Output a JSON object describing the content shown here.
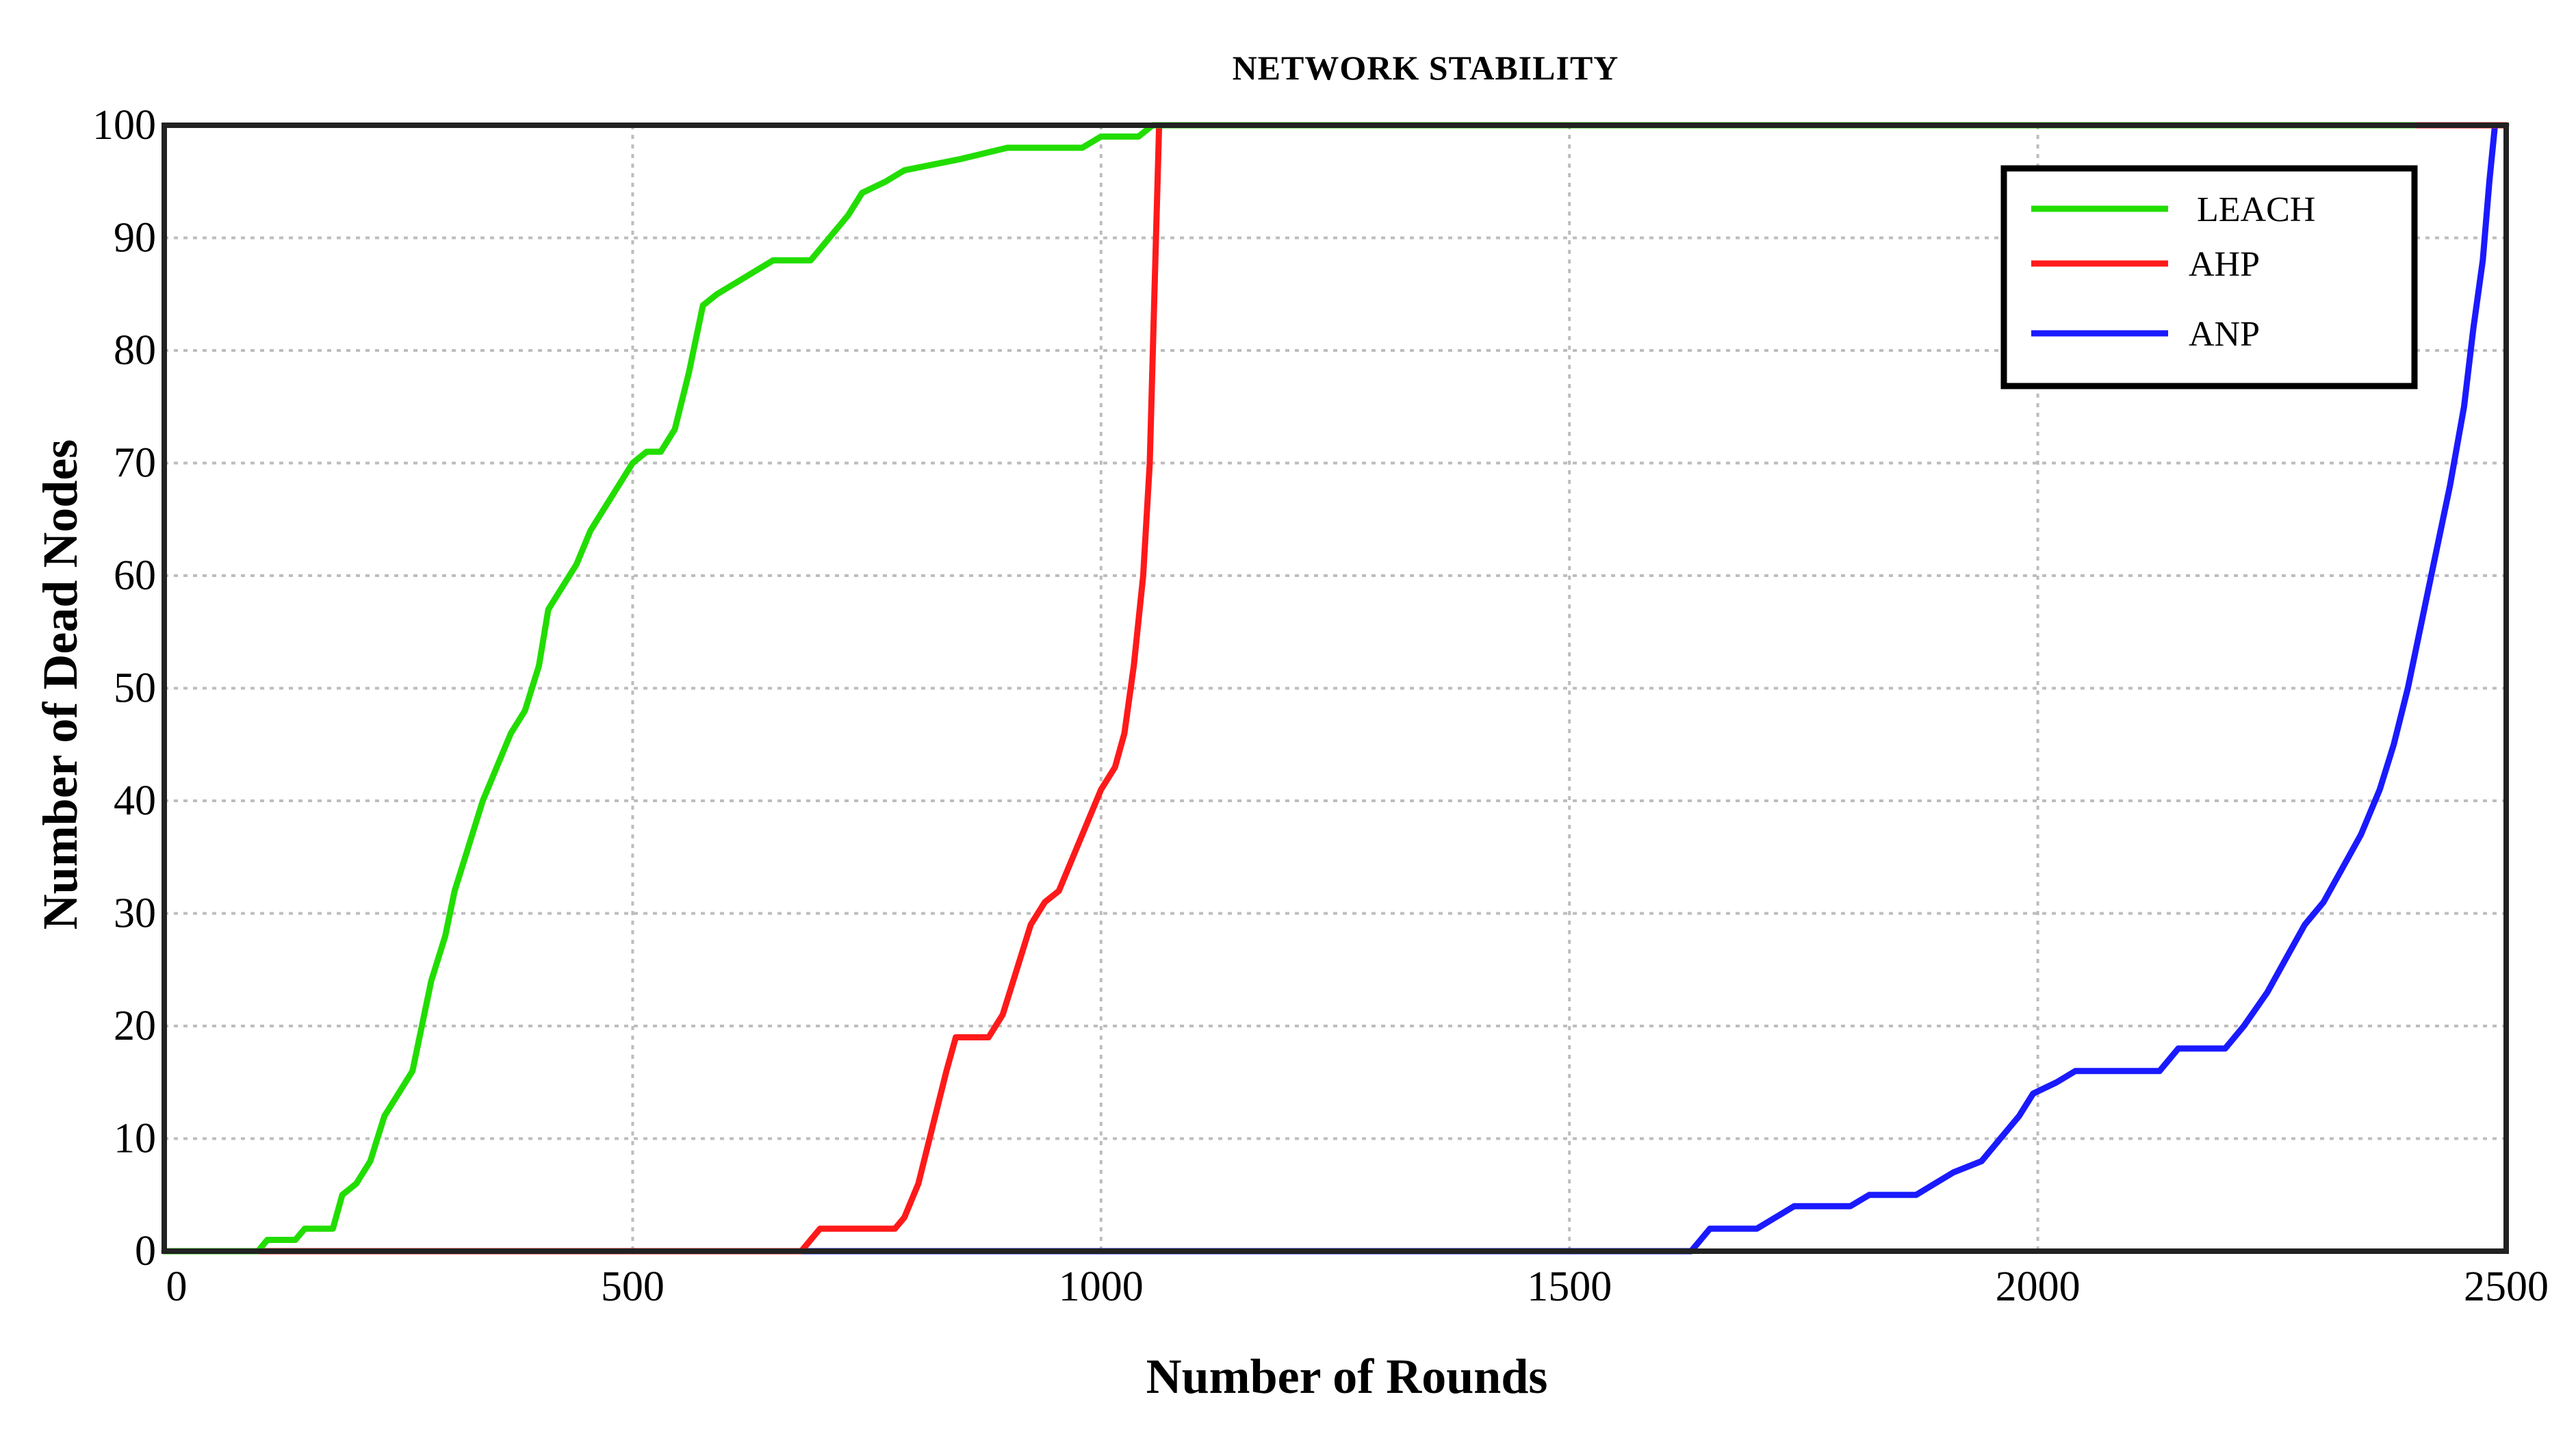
{
  "chart_data": {
    "type": "line",
    "title": "NETWORK STABILITY",
    "xlabel": "Number of Rounds",
    "ylabel": "Number of Dead Nodes",
    "xlim": [
      0,
      2500
    ],
    "ylim": [
      0,
      100
    ],
    "xticks": [
      0,
      500,
      1000,
      1500,
      2000,
      2500
    ],
    "yticks": [
      0,
      10,
      20,
      30,
      40,
      50,
      60,
      70,
      80,
      90,
      100
    ],
    "grid": true,
    "legend_position": "top-right",
    "series": [
      {
        "name": "LEACH",
        "color": "#22dd00",
        "points": [
          [
            0,
            0
          ],
          [
            100,
            0
          ],
          [
            110,
            1
          ],
          [
            140,
            1
          ],
          [
            150,
            2
          ],
          [
            180,
            2
          ],
          [
            190,
            5
          ],
          [
            205,
            6
          ],
          [
            220,
            8
          ],
          [
            235,
            12
          ],
          [
            250,
            14
          ],
          [
            265,
            16
          ],
          [
            275,
            20
          ],
          [
            285,
            24
          ],
          [
            300,
            28
          ],
          [
            310,
            32
          ],
          [
            325,
            36
          ],
          [
            340,
            40
          ],
          [
            355,
            43
          ],
          [
            370,
            46
          ],
          [
            385,
            48
          ],
          [
            400,
            52
          ],
          [
            410,
            57
          ],
          [
            425,
            59
          ],
          [
            440,
            61
          ],
          [
            455,
            64
          ],
          [
            470,
            66
          ],
          [
            485,
            68
          ],
          [
            500,
            70
          ],
          [
            515,
            71
          ],
          [
            530,
            71
          ],
          [
            545,
            73
          ],
          [
            560,
            78
          ],
          [
            575,
            84
          ],
          [
            590,
            85
          ],
          [
            610,
            86
          ],
          [
            630,
            87
          ],
          [
            650,
            88
          ],
          [
            690,
            88
          ],
          [
            710,
            90
          ],
          [
            730,
            92
          ],
          [
            745,
            94
          ],
          [
            770,
            95
          ],
          [
            790,
            96
          ],
          [
            850,
            97
          ],
          [
            900,
            98
          ],
          [
            980,
            98
          ],
          [
            1000,
            99
          ],
          [
            1040,
            99
          ],
          [
            1055,
            100
          ],
          [
            2500,
            100
          ]
        ]
      },
      {
        "name": "AHP",
        "color": "#ff1a1a",
        "points": [
          [
            0,
            0
          ],
          [
            680,
            0
          ],
          [
            690,
            1
          ],
          [
            700,
            2
          ],
          [
            780,
            2
          ],
          [
            790,
            3
          ],
          [
            805,
            6
          ],
          [
            820,
            11
          ],
          [
            835,
            16
          ],
          [
            845,
            19
          ],
          [
            880,
            19
          ],
          [
            895,
            21
          ],
          [
            910,
            25
          ],
          [
            925,
            29
          ],
          [
            940,
            31
          ],
          [
            955,
            32
          ],
          [
            970,
            35
          ],
          [
            985,
            38
          ],
          [
            1000,
            41
          ],
          [
            1015,
            43
          ],
          [
            1025,
            46
          ],
          [
            1035,
            52
          ],
          [
            1045,
            60
          ],
          [
            1052,
            70
          ],
          [
            1057,
            85
          ],
          [
            1062,
            100
          ],
          [
            2500,
            100
          ]
        ]
      },
      {
        "name": "ANP",
        "color": "#1a1aff",
        "points": [
          [
            0,
            0
          ],
          [
            1630,
            0
          ],
          [
            1650,
            2
          ],
          [
            1700,
            2
          ],
          [
            1720,
            3
          ],
          [
            1740,
            4
          ],
          [
            1800,
            4
          ],
          [
            1820,
            5
          ],
          [
            1870,
            5
          ],
          [
            1890,
            6
          ],
          [
            1910,
            7
          ],
          [
            1940,
            8
          ],
          [
            1960,
            10
          ],
          [
            1980,
            12
          ],
          [
            1995,
            14
          ],
          [
            2020,
            15
          ],
          [
            2040,
            16
          ],
          [
            2130,
            16
          ],
          [
            2150,
            18
          ],
          [
            2200,
            18
          ],
          [
            2220,
            20
          ],
          [
            2245,
            23
          ],
          [
            2265,
            26
          ],
          [
            2285,
            29
          ],
          [
            2305,
            31
          ],
          [
            2325,
            34
          ],
          [
            2345,
            37
          ],
          [
            2365,
            41
          ],
          [
            2380,
            45
          ],
          [
            2395,
            50
          ],
          [
            2410,
            56
          ],
          [
            2425,
            62
          ],
          [
            2440,
            68
          ],
          [
            2455,
            75
          ],
          [
            2465,
            82
          ],
          [
            2475,
            88
          ],
          [
            2482,
            95
          ],
          [
            2488,
            100
          ]
        ]
      }
    ]
  }
}
